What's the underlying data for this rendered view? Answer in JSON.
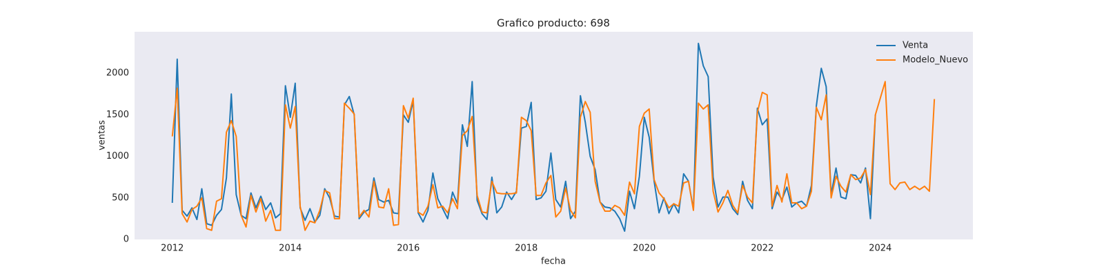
{
  "chart_data": {
    "type": "line",
    "title": "Grafico producto: 698",
    "xlabel": "fecha",
    "ylabel": "ventas",
    "x": [
      2012,
      2012.083,
      2012.167,
      2012.25,
      2012.333,
      2012.417,
      2012.5,
      2012.583,
      2012.667,
      2012.75,
      2012.833,
      2012.917,
      2013,
      2013.083,
      2013.167,
      2013.25,
      2013.333,
      2013.417,
      2013.5,
      2013.583,
      2013.667,
      2013.75,
      2013.833,
      2013.917,
      2014,
      2014.083,
      2014.167,
      2014.25,
      2014.333,
      2014.417,
      2014.5,
      2014.583,
      2014.667,
      2014.75,
      2014.833,
      2014.917,
      2015,
      2015.083,
      2015.167,
      2015.25,
      2015.333,
      2015.417,
      2015.5,
      2015.583,
      2015.667,
      2015.75,
      2015.833,
      2015.917,
      2016,
      2016.083,
      2016.167,
      2016.25,
      2016.333,
      2016.417,
      2016.5,
      2016.583,
      2016.667,
      2016.75,
      2016.833,
      2016.917,
      2017,
      2017.083,
      2017.167,
      2017.25,
      2017.333,
      2017.417,
      2017.5,
      2017.583,
      2017.667,
      2017.75,
      2017.833,
      2017.917,
      2018,
      2018.083,
      2018.167,
      2018.25,
      2018.333,
      2018.417,
      2018.5,
      2018.583,
      2018.667,
      2018.75,
      2018.833,
      2018.917,
      2019,
      2019.083,
      2019.167,
      2019.25,
      2019.333,
      2019.417,
      2019.5,
      2019.583,
      2019.667,
      2019.75,
      2019.833,
      2019.917,
      2020,
      2020.083,
      2020.167,
      2020.25,
      2020.333,
      2020.417,
      2020.5,
      2020.583,
      2020.667,
      2020.75,
      2020.833,
      2020.917,
      2021,
      2021.083,
      2021.167,
      2021.25,
      2021.333,
      2021.417,
      2021.5,
      2021.583,
      2021.667,
      2021.75,
      2021.833,
      2021.917,
      2022,
      2022.083,
      2022.167,
      2022.25,
      2022.333,
      2022.417,
      2022.5,
      2022.583,
      2022.667,
      2022.75,
      2022.833,
      2022.917,
      2023,
      2023.083,
      2023.167,
      2023.25,
      2023.333,
      2023.417,
      2023.5,
      2023.583,
      2023.667,
      2023.75,
      2023.833,
      2023.917,
      2024,
      2024.083,
      2024.167,
      2024.25,
      2024.333,
      2024.417,
      2024.5,
      2024.583,
      2024.667,
      2024.75,
      2024.833,
      2024.917
    ],
    "series": [
      {
        "name": "Venta",
        "color": "#1f77b4",
        "values": [
          440,
          2170,
          350,
          280,
          380,
          240,
          610,
          190,
          170,
          290,
          360,
          740,
          1750,
          540,
          290,
          250,
          560,
          380,
          520,
          360,
          440,
          260,
          310,
          1850,
          1470,
          1880,
          380,
          230,
          370,
          210,
          290,
          610,
          500,
          280,
          270,
          1620,
          1720,
          1500,
          250,
          330,
          360,
          740,
          480,
          450,
          470,
          320,
          310,
          1500,
          1410,
          1670,
          320,
          210,
          350,
          800,
          490,
          370,
          250,
          570,
          430,
          1380,
          1120,
          1900,
          470,
          310,
          240,
          750,
          320,
          390,
          570,
          480,
          580,
          1340,
          1360,
          1650,
          480,
          500,
          580,
          1040,
          480,
          390,
          700,
          250,
          340,
          1730,
          1410,
          1000,
          840,
          450,
          390,
          380,
          340,
          250,
          100,
          580,
          370,
          760,
          1470,
          1230,
          700,
          320,
          500,
          310,
          430,
          320,
          790,
          700,
          360,
          2360,
          2090,
          1960,
          750,
          390,
          510,
          510,
          370,
          300,
          700,
          470,
          370,
          1580,
          1380,
          1450,
          370,
          570,
          480,
          630,
          390,
          440,
          460,
          400,
          650,
          1610,
          2060,
          1840,
          540,
          860,
          510,
          490,
          780,
          770,
          680,
          860,
          250,
          1500,
          null,
          null,
          null,
          null,
          null,
          null,
          null,
          null,
          null,
          null,
          null,
          null
        ]
      },
      {
        "name": "Modelo_Nuevo",
        "color": "#ff7f0e",
        "values": [
          1240,
          1820,
          310,
          210,
          360,
          400,
          500,
          130,
          110,
          460,
          490,
          1290,
          1430,
          1240,
          290,
          150,
          530,
          330,
          490,
          220,
          350,
          110,
          110,
          1620,
          1340,
          1600,
          400,
          110,
          220,
          200,
          350,
          590,
          560,
          250,
          250,
          1640,
          1580,
          1510,
          270,
          350,
          270,
          700,
          390,
          380,
          610,
          170,
          180,
          1610,
          1460,
          1700,
          330,
          290,
          400,
          660,
          380,
          400,
          320,
          490,
          370,
          1250,
          1310,
          1480,
          530,
          330,
          320,
          700,
          560,
          550,
          550,
          550,
          560,
          1470,
          1430,
          1310,
          530,
          530,
          680,
          770,
          270,
          340,
          620,
          350,
          260,
          1470,
          1660,
          1530,
          700,
          450,
          340,
          340,
          410,
          380,
          290,
          690,
          550,
          1360,
          1520,
          1570,
          720,
          560,
          490,
          380,
          430,
          400,
          680,
          700,
          350,
          1640,
          1570,
          1620,
          580,
          330,
          440,
          590,
          410,
          320,
          650,
          510,
          440,
          1530,
          1770,
          1740,
          400,
          650,
          450,
          790,
          440,
          440,
          370,
          400,
          580,
          1590,
          1440,
          1740,
          500,
          760,
          640,
          570,
          780,
          720,
          740,
          840,
          540,
          1500,
          1700,
          1900,
          670,
          600,
          680,
          690,
          600,
          640,
          600,
          640,
          580,
          1690
        ]
      }
    ],
    "xlim": [
      2011.36,
      2025.57
    ],
    "xticks": [
      2012,
      2014,
      2016,
      2018,
      2020,
      2022,
      2024
    ],
    "ylim": [
      0,
      2500
    ],
    "yticks": [
      0,
      500,
      1000,
      1500,
      2000
    ],
    "grid": false,
    "legend": "upper right"
  }
}
